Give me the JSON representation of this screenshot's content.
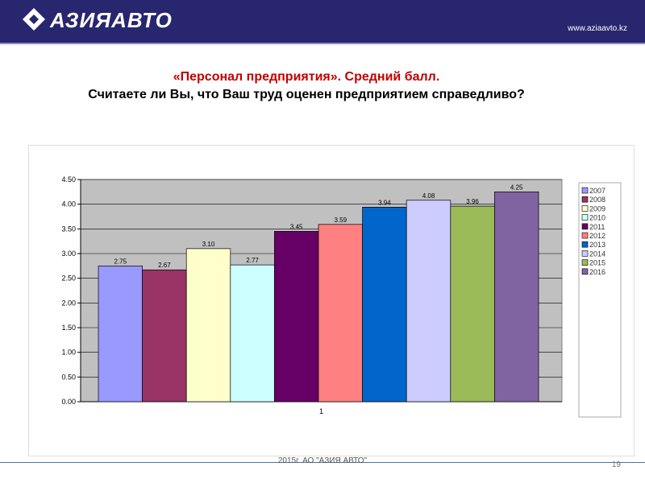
{
  "header": {
    "brand": "АЗИЯАВТО",
    "url": "www.aziaavto.kz"
  },
  "title": {
    "line1": "«Персонал предприятия». Средний балл.",
    "line2": "Считаете ли Вы, что Ваш труд оценен предприятием справедливо?"
  },
  "footer": {
    "text": "2015г. АО \"АЗИЯ АВТО\"",
    "page": "19"
  },
  "chart_data": {
    "type": "bar",
    "title": "",
    "xlabel": "",
    "ylabel": "",
    "categories": [
      "1"
    ],
    "ylim": [
      0,
      4.5
    ],
    "yticks": [
      "0.00",
      "0.50",
      "1.00",
      "1.50",
      "2.00",
      "2.50",
      "3.00",
      "3.50",
      "4.00",
      "4.50"
    ],
    "grid": true,
    "legend": "right",
    "series": [
      {
        "name": "2007",
        "values": [
          2.75
        ],
        "label": "2.75",
        "color": "#9999ff"
      },
      {
        "name": "2008",
        "values": [
          2.67
        ],
        "label": "2.67",
        "color": "#993366"
      },
      {
        "name": "2009",
        "values": [
          3.1
        ],
        "label": "3.10",
        "color": "#ffffcc"
      },
      {
        "name": "2010",
        "values": [
          2.77
        ],
        "label": "2.77",
        "color": "#ccffff"
      },
      {
        "name": "2011",
        "values": [
          3.45
        ],
        "label": "3.45",
        "color": "#660066"
      },
      {
        "name": "2012",
        "values": [
          3.59
        ],
        "label": "3.59",
        "color": "#ff8080"
      },
      {
        "name": "2013",
        "values": [
          3.94
        ],
        "label": "3.94",
        "color": "#0066cc"
      },
      {
        "name": "2014",
        "values": [
          4.08
        ],
        "label": "4.08",
        "color": "#ccccff"
      },
      {
        "name": "2015",
        "values": [
          3.96
        ],
        "label": "3.96",
        "color": "#9bbb59"
      },
      {
        "name": "2016",
        "values": [
          4.25
        ],
        "label": "4.25",
        "color": "#8064a2"
      }
    ]
  }
}
